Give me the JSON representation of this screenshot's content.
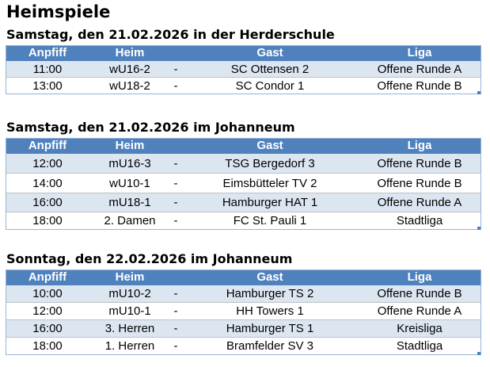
{
  "header": {
    "title": "Heimspiele"
  },
  "sections": [
    {
      "heading": "Samstag, den 21.02.2026 in der Herderschule",
      "columns": [
        "Anpfiff",
        "Heim",
        "Gast",
        "Liga"
      ],
      "rows": [
        [
          "11:00",
          "wU16-2",
          "-",
          "SC Ottensen 2",
          "Offene Runde A"
        ],
        [
          "13:00",
          "wU18-2",
          "-",
          "SC Condor 1",
          "Offene Runde B"
        ]
      ]
    },
    {
      "heading": "Samstag, den 21.02.2026 im Johanneum",
      "columns": [
        "Anpfiff",
        "Heim",
        "Gast",
        "Liga"
      ],
      "rows": [
        [
          "12:00",
          "mU16-3",
          "-",
          "TSG Bergedorf 3",
          "Offene Runde B"
        ],
        [
          "14:00",
          "wU10-1",
          "-",
          "Eimsbütteler TV 2",
          "Offene Runde B"
        ],
        [
          "16:00",
          "mU18-1",
          "-",
          "Hamburger HAT 1",
          "Offene Runde A"
        ],
        [
          "18:00",
          "2. Damen",
          "-",
          "FC St. Pauli 1",
          "Stadtliga"
        ]
      ]
    },
    {
      "heading": "Sonntag, den 22.02.2026 im Johanneum",
      "columns": [
        "Anpfiff",
        "Heim",
        "Gast",
        "Liga"
      ],
      "rows": [
        [
          "10:00",
          "mU10-2",
          "-",
          "Hamburger TS 2",
          "Offene Runde B"
        ],
        [
          "12:00",
          "mU10-1",
          "-",
          "HH Towers 1",
          "Offene Runde A"
        ],
        [
          "16:00",
          "3. Herren",
          "-",
          "Hamburger TS 1",
          "Kreisliga"
        ],
        [
          "18:00",
          "1. Herren",
          "-",
          "Bramfelder SV 3",
          "Stadtliga"
        ]
      ]
    }
  ]
}
